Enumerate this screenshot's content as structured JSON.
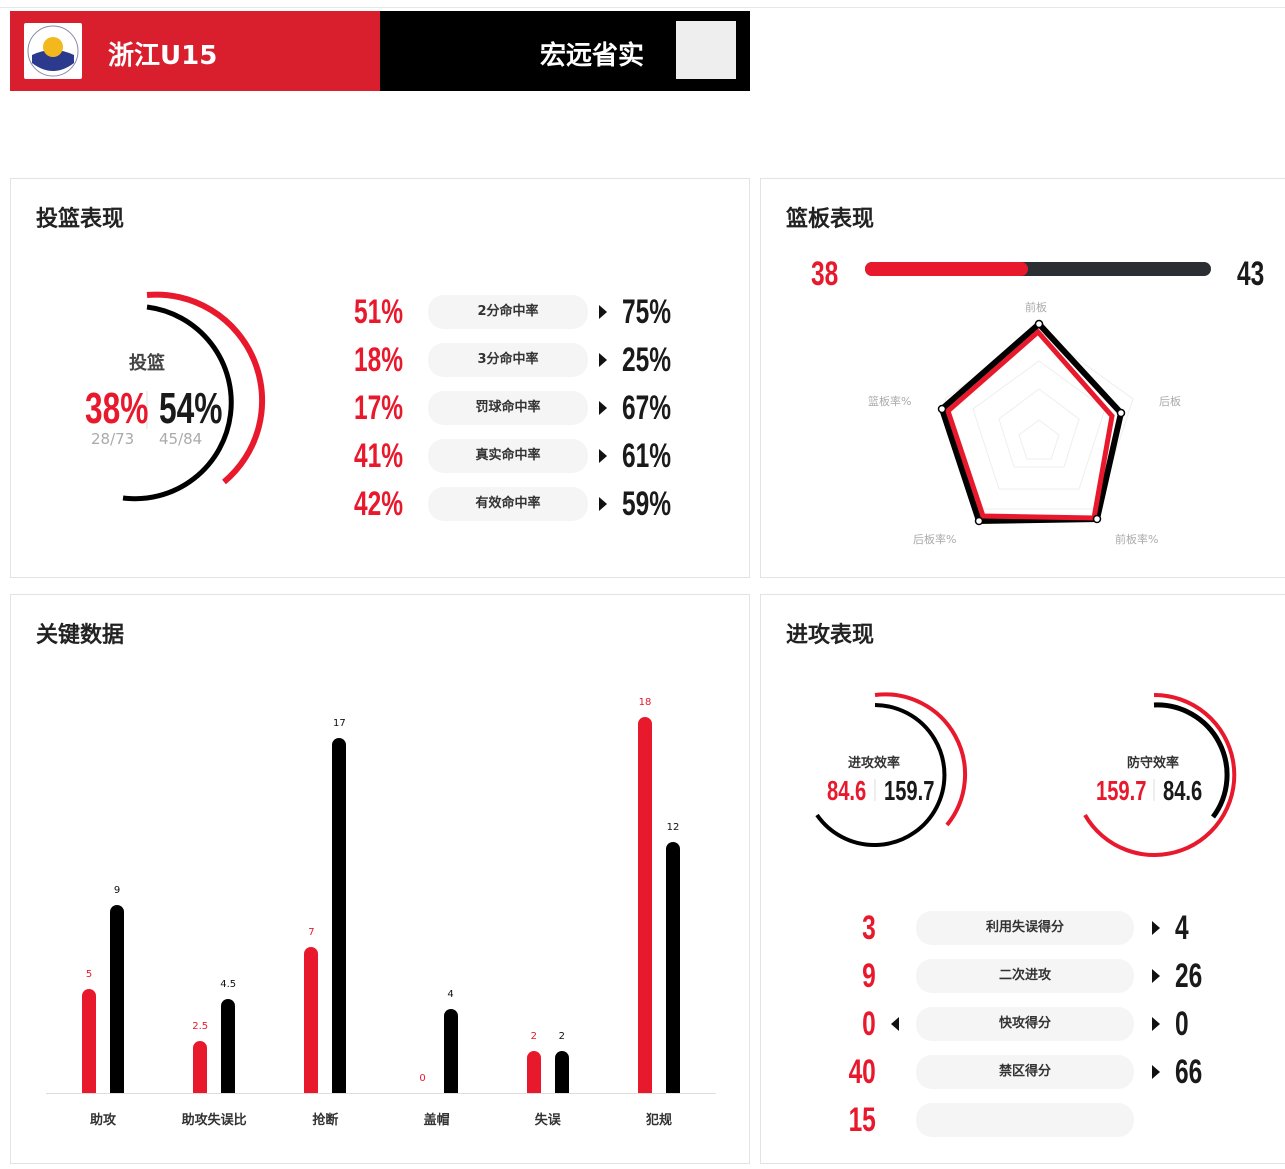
{
  "header": {
    "home_team": "浙江U15",
    "away_team": "宏远省实"
  },
  "shooting": {
    "title": "投篮表现",
    "ring_label": "投篮",
    "home_pct": "38%",
    "away_pct": "54%",
    "home_made": "28/73",
    "away_made": "45/84",
    "rows": [
      {
        "label": "2分命中率",
        "home": "51%",
        "away": "75%"
      },
      {
        "label": "3分命中率",
        "home": "18%",
        "away": "25%"
      },
      {
        "label": "罚球命中率",
        "home": "17%",
        "away": "67%"
      },
      {
        "label": "真实命中率",
        "home": "41%",
        "away": "61%"
      },
      {
        "label": "有效命中率",
        "home": "42%",
        "away": "59%"
      }
    ]
  },
  "rebounds": {
    "title": "篮板表现",
    "home": "38",
    "away": "43",
    "home_share": 0.47,
    "axes": [
      "前板",
      "后板",
      "前板率%",
      "后板率%",
      "篮板率%"
    ]
  },
  "key_stats": {
    "title": "关键数据",
    "chart_data": {
      "type": "bar",
      "categories": [
        "助攻",
        "助攻失误比",
        "抢断",
        "盖帽",
        "失误",
        "犯规"
      ],
      "series": [
        {
          "values": [
            5,
            2.5,
            7,
            0,
            2,
            18
          ]
        },
        {
          "values": [
            9,
            4.5,
            17,
            4,
            2,
            12
          ]
        }
      ]
    }
  },
  "offense": {
    "title": "进攻表现",
    "off_label": "进攻效率",
    "off_home": "84.6",
    "off_away": "159.7",
    "def_label": "防守效率",
    "def_home": "159.7",
    "def_away": "84.6",
    "rows": [
      {
        "label": "利用失误得分",
        "home": "3",
        "away": "4"
      },
      {
        "label": "二次进攻",
        "home": "9",
        "away": "26"
      },
      {
        "label": "快攻得分",
        "home": "0",
        "away": "0"
      },
      {
        "label": "禁区得分",
        "home": "40",
        "away": "66"
      },
      {
        "label": "",
        "home": "15",
        "away": ""
      }
    ]
  },
  "colors": {
    "home": "#e8192c",
    "away": "#111111"
  }
}
